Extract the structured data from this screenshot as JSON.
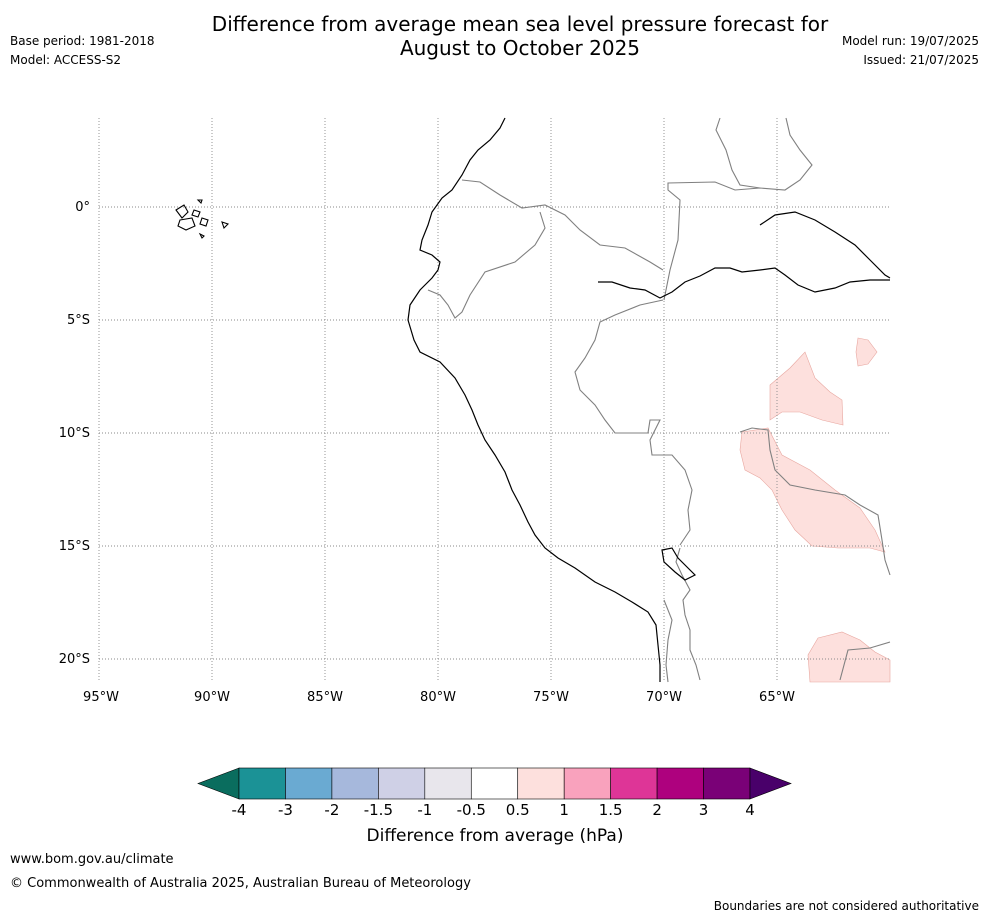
{
  "header": {
    "title_line1": "Difference from average mean sea level pressure forecast for",
    "title_line2": "August to October 2025",
    "base_period": "Base period: 1981-2018",
    "model": "Model: ACCESS-S2",
    "model_run": "Model run: 19/07/2025",
    "issued": "Issued: 21/07/2025"
  },
  "map": {
    "lat_labels": [
      "0°",
      "5°S",
      "10°S",
      "15°S",
      "20°S"
    ],
    "lon_labels": [
      "95°W",
      "90°W",
      "85°W",
      "80°W",
      "75°W",
      "70°W",
      "65°W"
    ],
    "coastline_color": "#000000",
    "border_color": "#808080",
    "shading_color": "#fde0dd",
    "shading_class": "0.5 to 1"
  },
  "colorbar": {
    "label": "Difference from average (hPa)",
    "tick_labels": [
      "-4",
      "-3",
      "-2",
      "-1.5",
      "-1",
      "-0.5",
      "0.5",
      "1",
      "1.5",
      "2",
      "3",
      "4"
    ],
    "colors": [
      "#0a6d5e",
      "#1b9296",
      "#6aaad2",
      "#a6b8dc",
      "#cfd0e6",
      "#e8e6ec",
      "#ffffff",
      "#fde0dd",
      "#f9a2bd",
      "#de3597",
      "#ae017e",
      "#7a0177",
      "#49006a"
    ]
  },
  "footer": {
    "url": "www.bom.gov.au/climate",
    "copyright": "© Commonwealth of Australia 2025, Australian Bureau of Meteorology",
    "note": "Boundaries are not considered authoritative"
  }
}
